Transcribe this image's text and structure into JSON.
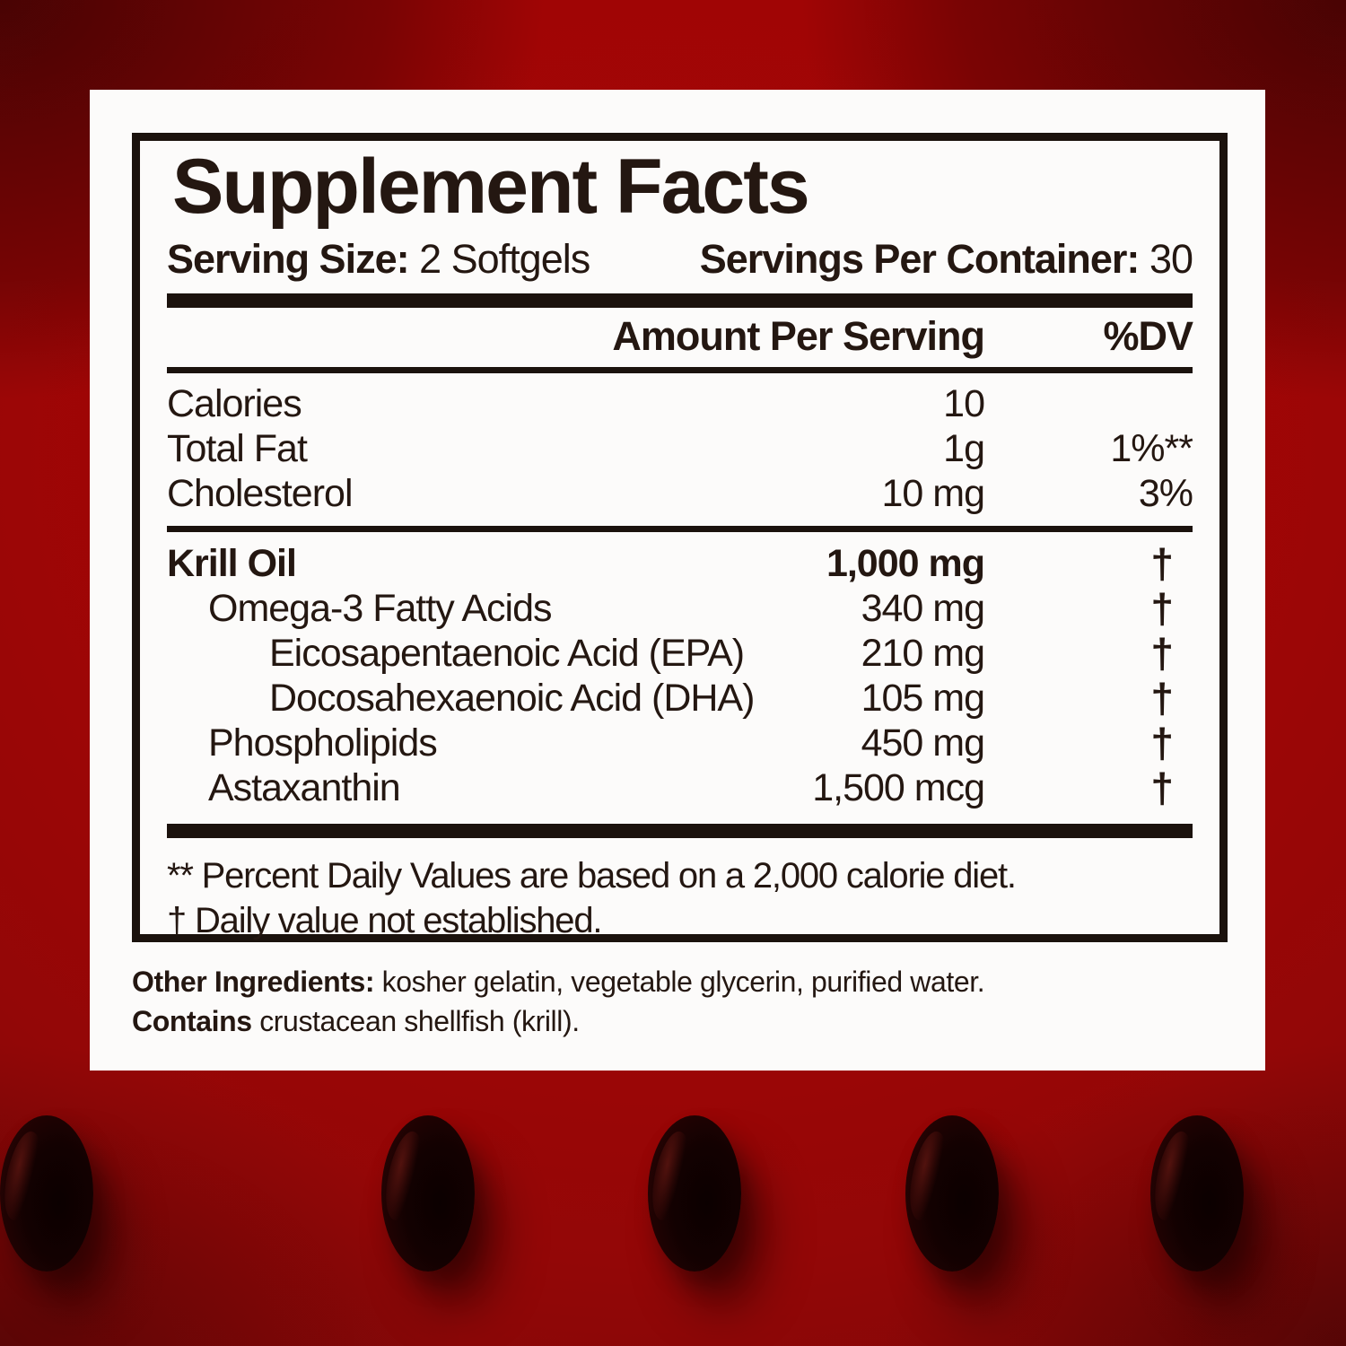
{
  "label": {
    "title": "Supplement Facts",
    "serving_size_label": "Serving Size:",
    "serving_size_value": "2 Softgels",
    "servings_label": "Servings Per Container:",
    "servings_value": "30",
    "columns": {
      "amount": "Amount Per Serving",
      "dv": "%DV"
    },
    "rows": [
      {
        "name": "Calories",
        "amount": "10",
        "dv": "",
        "indent": 0,
        "bold": false,
        "divider_after": false
      },
      {
        "name": "Total Fat",
        "amount": "1g",
        "dv": "1%**",
        "indent": 0,
        "bold": false,
        "divider_after": false
      },
      {
        "name": "Cholesterol",
        "amount": "10 mg",
        "dv": "3%",
        "indent": 0,
        "bold": false,
        "divider_after": true
      },
      {
        "name": "Krill Oil",
        "amount": "1,000 mg",
        "dv": "†",
        "indent": 0,
        "bold": true,
        "divider_after": false
      },
      {
        "name": "Omega-3 Fatty Acids",
        "amount": "340 mg",
        "dv": "†",
        "indent": 1,
        "bold": false,
        "divider_after": false
      },
      {
        "name": "Eicosapentaenoic Acid (EPA)",
        "amount": "210 mg",
        "dv": "†",
        "indent": 2,
        "bold": false,
        "divider_after": false
      },
      {
        "name": "Docosahexaenoic Acid (DHA)",
        "amount": "105 mg",
        "dv": "†",
        "indent": 2,
        "bold": false,
        "divider_after": false
      },
      {
        "name": "Phospholipids",
        "amount": "450 mg",
        "dv": "†",
        "indent": 1,
        "bold": false,
        "divider_after": false
      },
      {
        "name": "Astaxanthin",
        "amount": "1,500 mcg",
        "dv": "†",
        "indent": 1,
        "bold": false,
        "divider_after": false
      }
    ],
    "footnotes": [
      "** Percent Daily Values are based on a 2,000 calorie diet.",
      "† Daily value not established."
    ],
    "other_ingredients_label": "Other Ingredients:",
    "other_ingredients_value": "kosher gelatin, vegetable glycerin, purified water.",
    "contains_label": "Contains",
    "contains_value": "crustacean shellfish (krill)."
  },
  "capsules": {
    "count": 5
  },
  "colors": {
    "background_red_bright": "#a00505",
    "background_red_dark": "#3f0606",
    "panel_white": "#fcfbfa",
    "ink": "#241711",
    "rule_black": "#1b120d",
    "capsule_dark": "#0b0000",
    "capsule_rim": "#3c0606"
  }
}
